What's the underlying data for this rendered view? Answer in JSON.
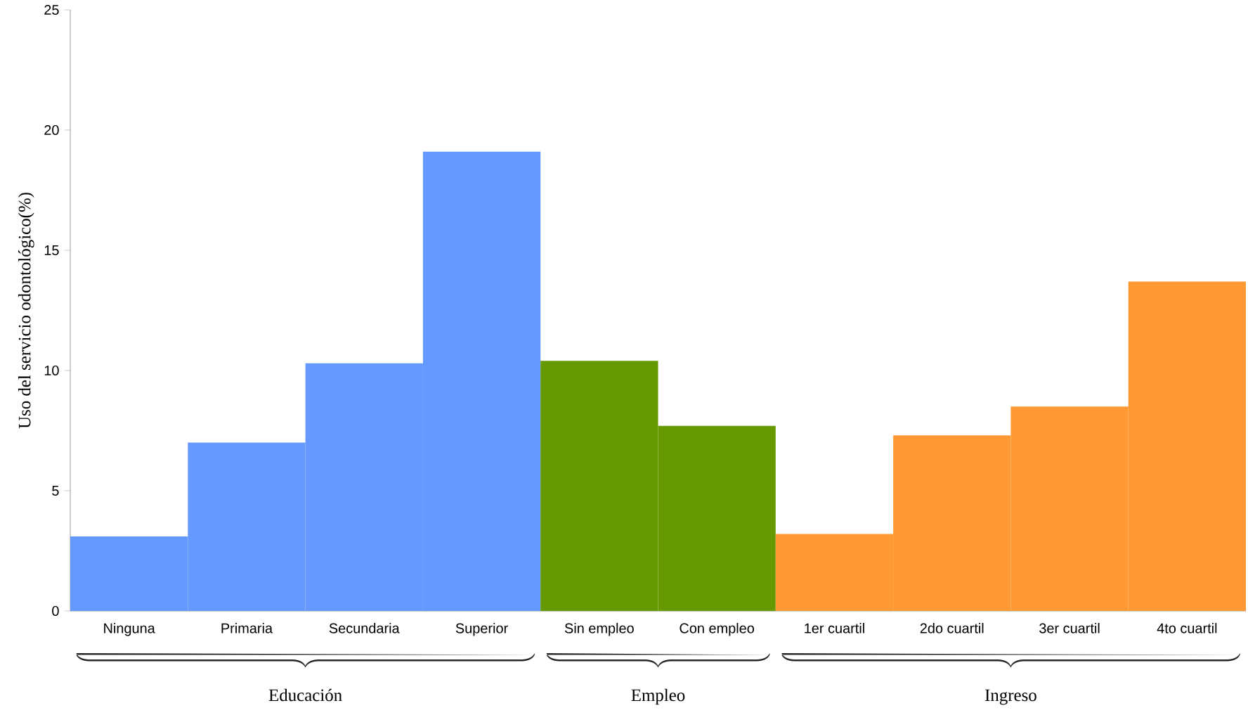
{
  "chart_data": {
    "type": "bar",
    "ylabel": "Uso del servicio odontológico(%)",
    "categories": [
      "Ninguna",
      "Primaria",
      "Secundaria",
      "Superior",
      "Sin empleo",
      "Con empleo",
      "1er  cuartil",
      "2do cuartil",
      "3er  cuartil",
      "4to  cuartil"
    ],
    "values": [
      3.1,
      7.0,
      10.3,
      19.1,
      10.4,
      7.7,
      3.2,
      7.3,
      8.5,
      13.7
    ],
    "colors": [
      "#6699ff",
      "#6699ff",
      "#6699ff",
      "#6699ff",
      "#669900",
      "#669900",
      "#ff9933",
      "#ff9933",
      "#ff9933",
      "#ff9933"
    ],
    "ylim": [
      0,
      25
    ],
    "yticks": [
      0,
      5,
      10,
      15,
      20,
      25
    ],
    "annotations": [
      "Educación",
      "Empleo",
      "Ingreso"
    ]
  }
}
